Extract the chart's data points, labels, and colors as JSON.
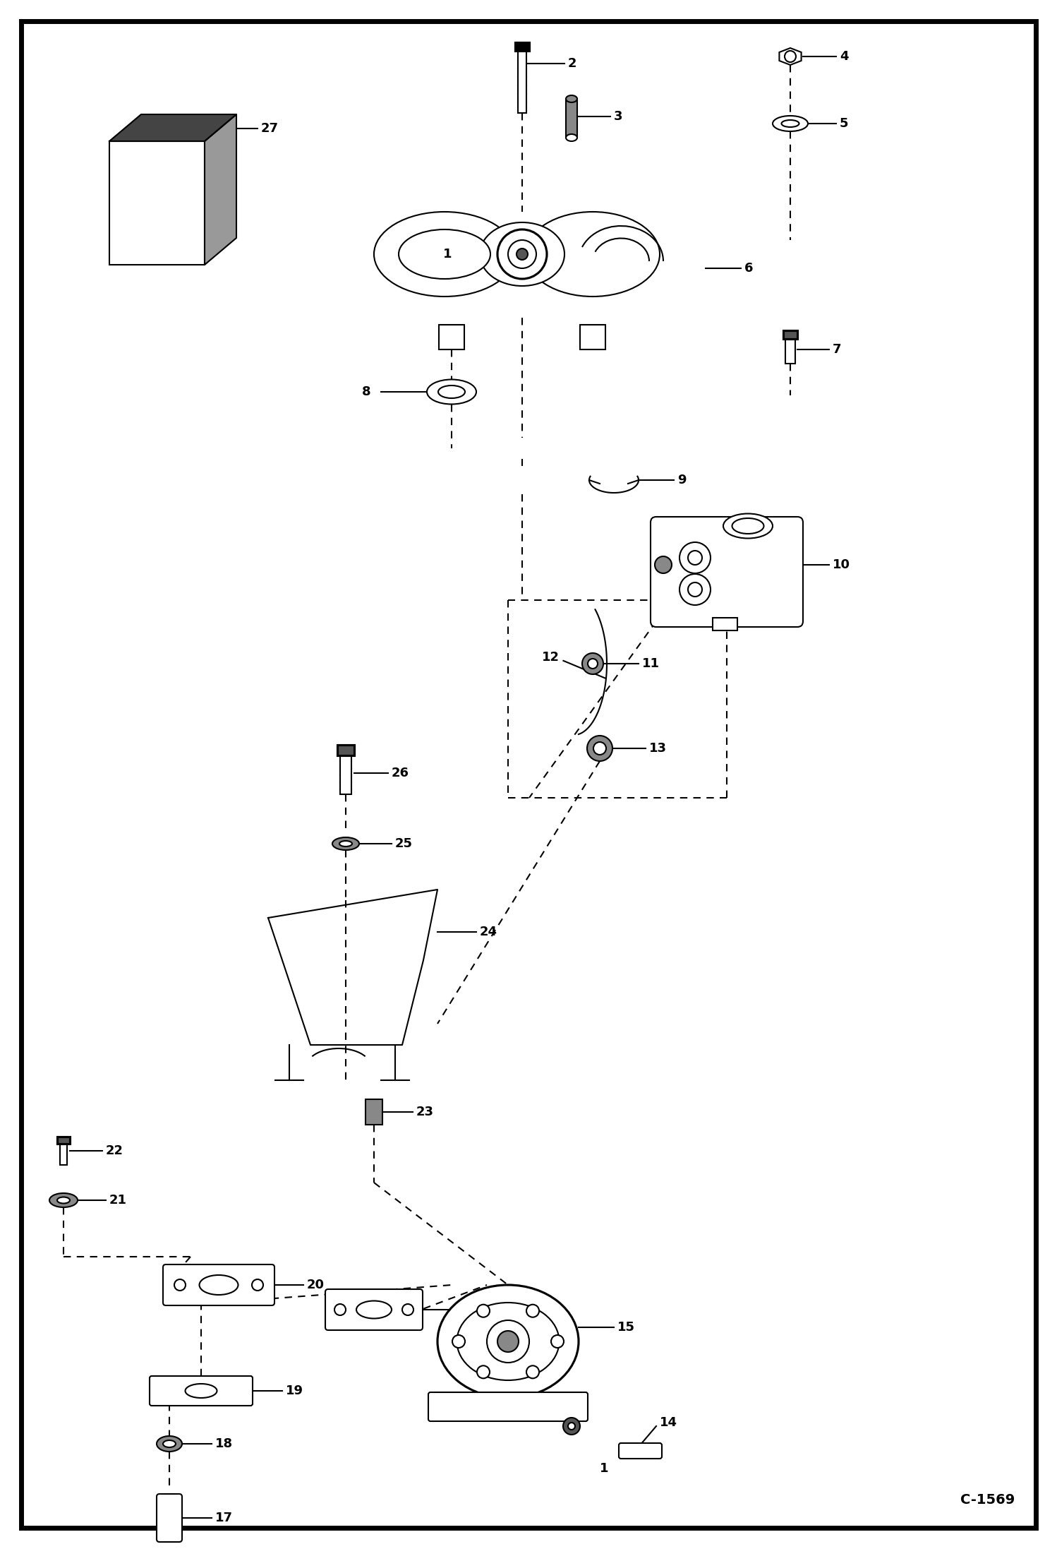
{
  "background_color": "#ffffff",
  "border_color": "#000000",
  "border_linewidth": 5,
  "diagram_code": "C-1569",
  "figsize": [
    14.98,
    21.94
  ],
  "dpi": 100,
  "lw": 1.5,
  "label_fontsize": 13,
  "label_fontweight": "bold"
}
